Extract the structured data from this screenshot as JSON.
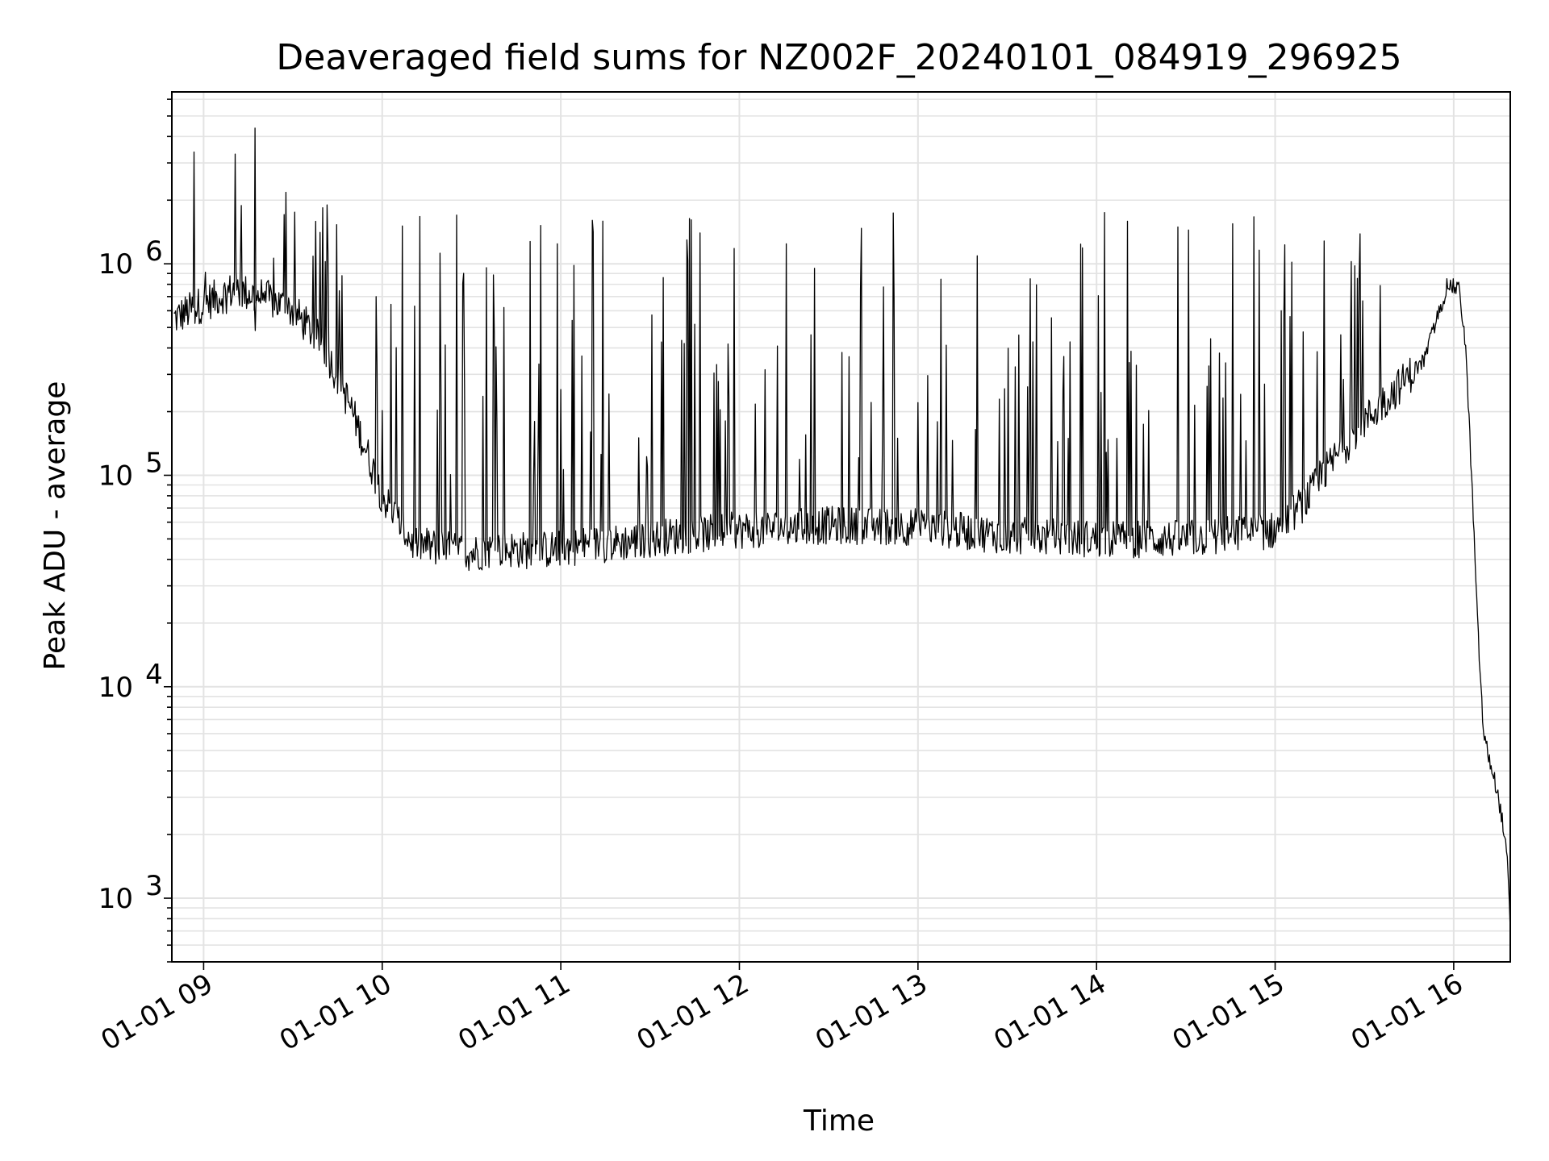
{
  "chart_data": {
    "type": "line",
    "title": "Deaveraged field sums for NZ002F_20240101_084919_296925",
    "xlabel": "Time",
    "ylabel": "Peak ADU - average",
    "yscale": "log",
    "ylim": [
      500,
      6500000
    ],
    "xlim": [
      "2024-01-01 08:49:19",
      "2024-01-01 16:19:00"
    ],
    "grid": true,
    "line_color": "#000000",
    "x_ticks": [
      {
        "t": "2024-01-01 09:00",
        "label": "01-01 09"
      },
      {
        "t": "2024-01-01 10:00",
        "label": "01-01 10"
      },
      {
        "t": "2024-01-01 11:00",
        "label": "01-01 11"
      },
      {
        "t": "2024-01-01 12:00",
        "label": "01-01 12"
      },
      {
        "t": "2024-01-01 13:00",
        "label": "01-01 13"
      },
      {
        "t": "2024-01-01 14:00",
        "label": "01-01 14"
      },
      {
        "t": "2024-01-01 15:00",
        "label": "01-01 15"
      },
      {
        "t": "2024-01-01 16:00",
        "label": "01-01 16"
      }
    ],
    "y_ticks": [
      {
        "value": 1000,
        "base": "10",
        "exp": "3"
      },
      {
        "value": 10000,
        "base": "10",
        "exp": "4"
      },
      {
        "value": 100000,
        "base": "10",
        "exp": "5"
      },
      {
        "value": 1000000,
        "base": "10",
        "exp": "6"
      }
    ],
    "series": [
      {
        "x": [
          "2024-01-01 08:50",
          "2024-01-01 09:00",
          "2024-01-01 09:10",
          "2024-01-01 09:20",
          "2024-01-01 09:30",
          "2024-01-01 09:40",
          "2024-01-01 09:50",
          "2024-01-01 10:00",
          "2024-01-01 10:10",
          "2024-01-01 10:20",
          "2024-01-01 10:30",
          "2024-01-01 10:40",
          "2024-01-01 10:50",
          "2024-01-01 11:00",
          "2024-01-01 11:10",
          "2024-01-01 11:20",
          "2024-01-01 11:30",
          "2024-01-01 11:40",
          "2024-01-01 11:50",
          "2024-01-01 12:00",
          "2024-01-01 12:30",
          "2024-01-01 13:00",
          "2024-01-01 13:30",
          "2024-01-01 14:00",
          "2024-01-01 14:30",
          "2024-01-01 15:00",
          "2024-01-01 15:10",
          "2024-01-01 15:20",
          "2024-01-01 15:30",
          "2024-01-01 15:40",
          "2024-01-01 15:50",
          "2024-01-01 15:58",
          "2024-01-01 16:02",
          "2024-01-01 16:04",
          "2024-01-01 16:06",
          "2024-01-01 16:08",
          "2024-01-01 16:10",
          "2024-01-01 16:12",
          "2024-01-01 16:14",
          "2024-01-01 16:16",
          "2024-01-01 16:18",
          "2024-01-01 16:19"
        ],
        "y": [
          550000,
          650000,
          750000,
          700000,
          600000,
          420000,
          200000,
          80000,
          48000,
          45000,
          43000,
          45000,
          44000,
          45000,
          47000,
          48000,
          50000,
          52000,
          53000,
          55000,
          58000,
          57000,
          52000,
          50000,
          50000,
          55000,
          75000,
          120000,
          180000,
          250000,
          350000,
          800000,
          750000,
          400000,
          100000,
          20000,
          6000,
          4500,
          3500,
          2500,
          1500,
          700
        ]
      }
    ]
  }
}
